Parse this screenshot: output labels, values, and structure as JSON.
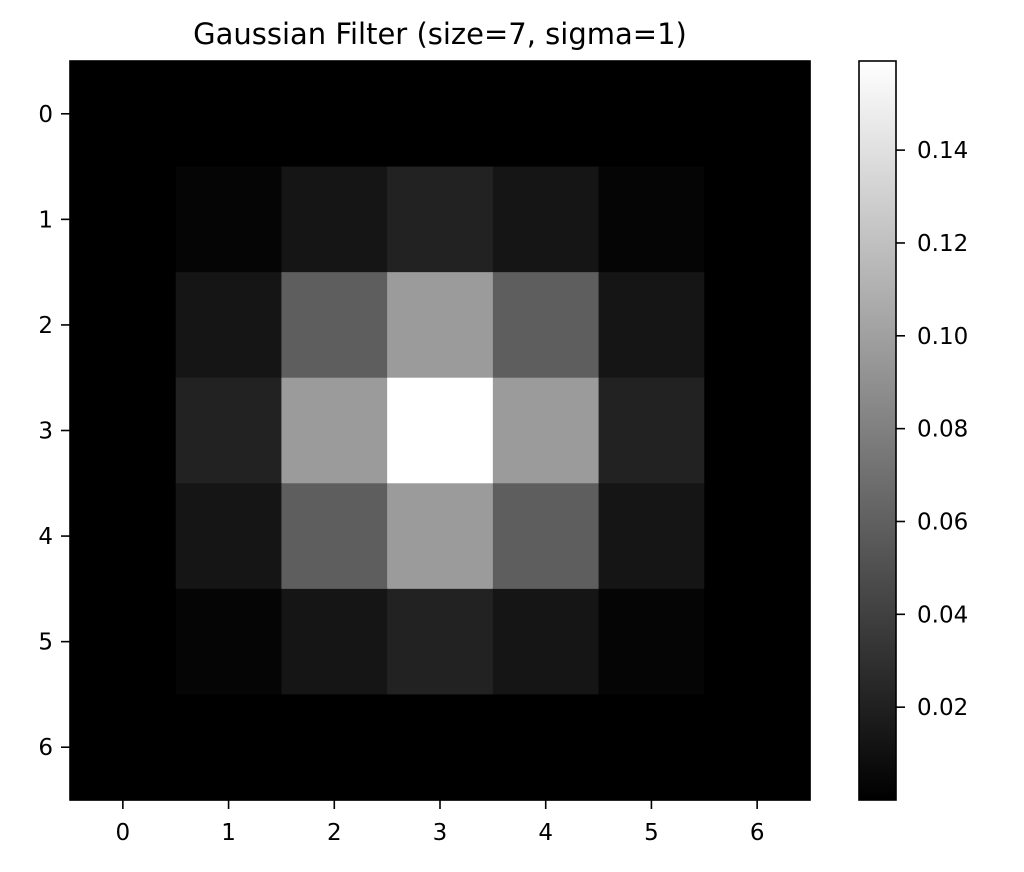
{
  "chart_data": {
    "type": "heatmap",
    "title": "Gaussian Filter (size=7, sigma=1)",
    "colormap": "gray",
    "x_ticks": [
      "0",
      "1",
      "2",
      "3",
      "4",
      "5",
      "6"
    ],
    "y_ticks": [
      "0",
      "1",
      "2",
      "3",
      "4",
      "5",
      "6"
    ],
    "values": [
      [
        0.0,
        0.0,
        0.0002,
        0.0002,
        0.0002,
        0.0,
        0.0
      ],
      [
        0.0,
        0.003,
        0.0131,
        0.0215,
        0.0131,
        0.003,
        0.0
      ],
      [
        0.0002,
        0.0131,
        0.0586,
        0.0965,
        0.0586,
        0.0131,
        0.0002
      ],
      [
        0.0002,
        0.0215,
        0.0965,
        0.1592,
        0.0965,
        0.0215,
        0.0002
      ],
      [
        0.0002,
        0.0131,
        0.0586,
        0.0965,
        0.0586,
        0.0131,
        0.0002
      ],
      [
        0.0,
        0.003,
        0.0131,
        0.0215,
        0.0131,
        0.003,
        0.0
      ],
      [
        0.0,
        0.0,
        0.0002,
        0.0002,
        0.0002,
        0.0,
        0.0
      ]
    ],
    "colorbar": {
      "min": 0.0,
      "max": 0.1592,
      "ticks": [
        0.02,
        0.04,
        0.06,
        0.08,
        0.1,
        0.12,
        0.14
      ],
      "tick_labels": [
        "0.02",
        "0.04",
        "0.06",
        "0.08",
        "0.10",
        "0.12",
        "0.14"
      ]
    }
  }
}
